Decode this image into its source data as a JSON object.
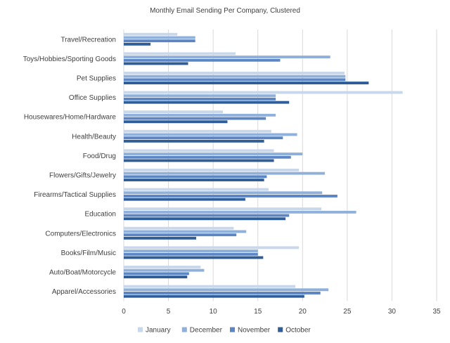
{
  "chart_data": {
    "type": "bar",
    "orientation": "horizontal",
    "title": "Monthly Email Sending Per Company, Clustered",
    "xlabel": "",
    "ylabel": "",
    "xlim": [
      0,
      35
    ],
    "x_ticks": [
      0,
      5,
      10,
      15,
      20,
      25,
      30,
      35
    ],
    "grid": "vertical gridlines",
    "legend_position": "bottom",
    "categories": [
      "Travel/Recreation",
      "Toys/Hobbies/Sporting Goods",
      "Pet Supplies",
      "Office Supplies",
      "Housewares/Home/Hardware",
      "Health/Beauty",
      "Food/Drug",
      "Flowers/Gifts/Jewelry",
      "Firearms/Tactical Supplies",
      "Education",
      "Computers/Electronics",
      "Books/Film/Music",
      "Auto/Boat/Motorcycle",
      "Apparel/Accessories"
    ],
    "series": [
      {
        "name": "January",
        "color": "#c9d7eb",
        "values": [
          6.0,
          12.5,
          24.7,
          31.2,
          11.1,
          16.5,
          16.8,
          19.6,
          16.2,
          22.1,
          12.3,
          19.6,
          8.6,
          19.2
        ]
      },
      {
        "name": "December",
        "color": "#8fb0da",
        "values": [
          8.0,
          23.1,
          24.8,
          17.0,
          17.0,
          19.4,
          20.0,
          22.5,
          22.2,
          26.0,
          13.7,
          15.0,
          9.0,
          22.9
        ]
      },
      {
        "name": "November",
        "color": "#5b85c3",
        "values": [
          8.0,
          17.5,
          24.8,
          17.0,
          15.9,
          17.8,
          18.7,
          16.0,
          23.9,
          18.5,
          12.6,
          15.0,
          7.3,
          22.0
        ]
      },
      {
        "name": "October",
        "color": "#2e5d98",
        "values": [
          3.0,
          7.2,
          27.4,
          18.5,
          11.6,
          15.7,
          16.8,
          15.7,
          13.6,
          18.1,
          8.1,
          15.6,
          7.1,
          20.2
        ]
      }
    ]
  }
}
